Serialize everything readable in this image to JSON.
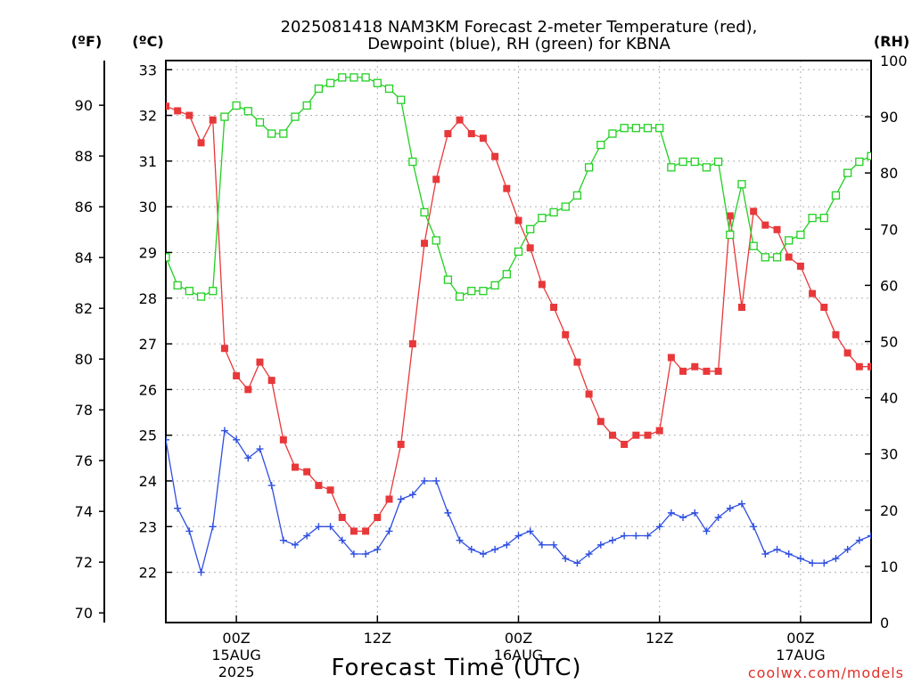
{
  "chart_data": {
    "type": "line",
    "title_line1": "2025081418 NAM3KM Forecast 2-meter Temperature (red),",
    "title_line2": "Dewpoint (blue), RH (green) for KBNA",
    "xlabel": "Forecast Time (UTC)",
    "credit": "coolwx.com/models",
    "left_f_unit": "(ºF)",
    "left_c_unit": "(ºC)",
    "right_unit": "(RH)",
    "x_range_hours": [
      0,
      60
    ],
    "y_celsius_range": [
      20.9,
      33.2
    ],
    "y_rh_range": [
      0,
      100
    ],
    "grid": true,
    "fahrenheit_ticks": [
      "70",
      "72",
      "74",
      "76",
      "78",
      "80",
      "82",
      "84",
      "86",
      "88",
      "90"
    ],
    "celsius_ticks": [
      "22",
      "23",
      "24",
      "25",
      "26",
      "27",
      "28",
      "29",
      "30",
      "31",
      "32",
      "33"
    ],
    "rh_ticks": [
      "0",
      "10",
      "20",
      "30",
      "40",
      "50",
      "60",
      "70",
      "80",
      "90",
      "100"
    ],
    "x_ticks": [
      {
        "hour": 6,
        "line1": "00Z",
        "line2": "15AUG",
        "line3": "2025"
      },
      {
        "hour": 18,
        "line1": "12Z",
        "line2": "",
        "line3": ""
      },
      {
        "hour": 30,
        "line1": "00Z",
        "line2": "16AUG",
        "line3": ""
      },
      {
        "hour": 42,
        "line1": "12Z",
        "line2": "",
        "line3": ""
      },
      {
        "hour": 54,
        "line1": "00Z",
        "line2": "17AUG",
        "line3": ""
      }
    ],
    "series": [
      {
        "name": "2-meter Temperature",
        "color": "#e8383a",
        "marker": "filled-square",
        "axis": "celsius",
        "x": [
          0,
          1,
          2,
          3,
          4,
          5,
          6,
          7,
          8,
          9,
          10,
          11,
          12,
          13,
          14,
          15,
          16,
          17,
          18,
          19,
          20,
          21,
          22,
          23,
          24,
          25,
          26,
          27,
          28,
          29,
          30,
          31,
          32,
          33,
          34,
          35,
          36,
          37,
          38,
          39,
          40,
          41,
          42,
          43,
          44,
          45,
          46,
          47,
          48,
          49,
          50,
          51,
          52,
          53,
          54,
          55,
          56,
          57,
          58,
          59,
          60
        ],
        "y": [
          32.2,
          32.1,
          32.0,
          31.4,
          31.9,
          26.9,
          26.3,
          26.0,
          26.6,
          26.2,
          24.9,
          24.3,
          24.2,
          23.9,
          23.8,
          23.2,
          22.9,
          22.9,
          23.2,
          23.6,
          24.8,
          27.0,
          29.2,
          30.6,
          31.6,
          31.9,
          31.6,
          31.5,
          31.1,
          30.4,
          29.7,
          29.1,
          28.3,
          27.8,
          27.2,
          26.6,
          25.9,
          25.3,
          25.0,
          24.8,
          25.0,
          25.0,
          25.1,
          26.7,
          26.4,
          26.5,
          26.4,
          26.4,
          29.8,
          27.8,
          29.9,
          29.6,
          29.5,
          28.9,
          28.7,
          28.1,
          27.8,
          27.2,
          26.8,
          26.5,
          26.5
        ]
      },
      {
        "name": "Dewpoint",
        "color": "#2f4fe0",
        "marker": "plus",
        "axis": "celsius",
        "x": [
          0,
          1,
          2,
          3,
          4,
          5,
          6,
          7,
          8,
          9,
          10,
          11,
          12,
          13,
          14,
          15,
          16,
          17,
          18,
          19,
          20,
          21,
          22,
          23,
          24,
          25,
          26,
          27,
          28,
          29,
          30,
          31,
          32,
          33,
          34,
          35,
          36,
          37,
          38,
          39,
          40,
          41,
          42,
          43,
          44,
          45,
          46,
          47,
          48,
          49,
          50,
          51,
          52,
          53,
          54,
          55,
          56,
          57,
          58,
          59,
          60
        ],
        "y": [
          24.9,
          23.4,
          22.9,
          22.0,
          23.0,
          25.1,
          24.9,
          24.5,
          24.7,
          23.9,
          22.7,
          22.6,
          22.8,
          23.0,
          23.0,
          22.7,
          22.4,
          22.4,
          22.5,
          22.9,
          23.6,
          23.7,
          24.0,
          24.0,
          23.3,
          22.7,
          22.5,
          22.4,
          22.5,
          22.6,
          22.8,
          22.9,
          22.6,
          22.6,
          22.3,
          22.2,
          22.4,
          22.6,
          22.7,
          22.8,
          22.8,
          22.8,
          23.0,
          23.3,
          23.2,
          23.3,
          22.9,
          23.2,
          23.4,
          23.5,
          23.0,
          22.4,
          22.5,
          22.4,
          22.3,
          22.2,
          22.2,
          22.3,
          22.5,
          22.7,
          22.8
        ]
      },
      {
        "name": "RH",
        "color": "#22d022",
        "marker": "open-square",
        "axis": "rh",
        "x": [
          0,
          1,
          2,
          3,
          4,
          5,
          6,
          7,
          8,
          9,
          10,
          11,
          12,
          13,
          14,
          15,
          16,
          17,
          18,
          19,
          20,
          21,
          22,
          23,
          24,
          25,
          26,
          27,
          28,
          29,
          30,
          31,
          32,
          33,
          34,
          35,
          36,
          37,
          38,
          39,
          40,
          41,
          42,
          43,
          44,
          45,
          46,
          47,
          48,
          49,
          50,
          51,
          52,
          53,
          54,
          55,
          56,
          57,
          58,
          59,
          60
        ],
        "y": [
          65,
          60,
          59,
          58,
          59,
          90,
          92,
          91,
          89,
          87,
          87,
          90,
          92,
          95,
          96,
          97,
          97,
          97,
          96,
          95,
          93,
          82,
          73,
          68,
          61,
          58,
          59,
          59,
          60,
          62,
          66,
          70,
          72,
          73,
          74,
          76,
          81,
          85,
          87,
          88,
          88,
          88,
          88,
          81,
          82,
          82,
          81,
          82,
          69,
          78,
          67,
          65,
          65,
          68,
          69,
          72,
          72,
          76,
          80,
          82,
          83
        ]
      }
    ]
  }
}
